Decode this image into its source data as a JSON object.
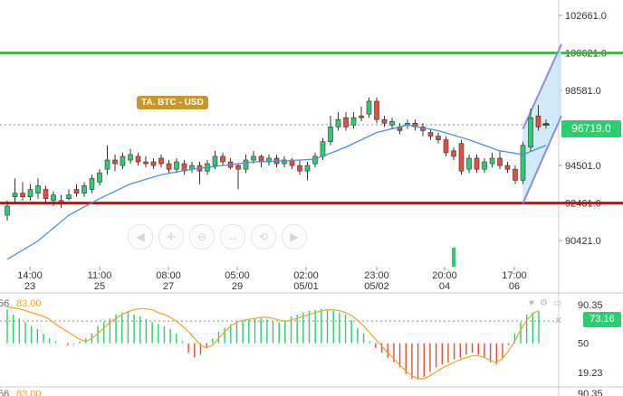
{
  "symbol_badge": "TA.  BTC - USD",
  "last_price_label": "96719.0",
  "colors": {
    "up": "#2ecc71",
    "down": "#e74c3c",
    "ma": "#4a90e2",
    "channel": "#8a8fd9",
    "support": "#e60000",
    "resistance": "#22cc22",
    "stoch": "#f0a830",
    "badge": "#c9972b"
  },
  "chart_data": {
    "type": "candlestick",
    "price_axis": {
      "ticks": [
        102661,
        100621,
        98581,
        96719,
        94501,
        92461,
        90421
      ],
      "tick_labels": [
        "102661.0",
        "100621.0",
        "98581.0",
        "",
        "94501.0",
        "92461.0",
        "90421.0"
      ],
      "range": [
        89000,
        103500
      ]
    },
    "time_labels": [
      [
        "14:00",
        "23"
      ],
      [
        "11:00",
        "25"
      ],
      [
        "08:00",
        "27"
      ],
      [
        "05:00",
        "29"
      ],
      [
        "02:00",
        "05/01"
      ],
      [
        "23:00",
        "05/02"
      ],
      [
        "20:00",
        "04"
      ],
      [
        "17:00",
        "06"
      ]
    ],
    "horizontal_lines": [
      {
        "role": "resistance",
        "value": 100621
      },
      {
        "role": "support",
        "value": 92461
      },
      {
        "role": "last-price",
        "value": 96719
      }
    ],
    "candles": [
      [
        91800,
        92300,
        91500,
        92600
      ],
      [
        92800,
        93000,
        92400,
        93800
      ],
      [
        93000,
        92800,
        92600,
        93600
      ],
      [
        92800,
        93200,
        92600,
        93500
      ],
      [
        93000,
        93400,
        92700,
        93800
      ],
      [
        93200,
        92700,
        92500,
        93400
      ],
      [
        92600,
        92900,
        92300,
        93100
      ],
      [
        92600,
        92500,
        92200,
        92900
      ],
      [
        92700,
        92900,
        92600,
        93200
      ],
      [
        93200,
        93000,
        92800,
        93500
      ],
      [
        93000,
        93400,
        92800,
        93600
      ],
      [
        93200,
        93800,
        93000,
        94000
      ],
      [
        93600,
        94100,
        93400,
        94300
      ],
      [
        94300,
        94800,
        94000,
        95600
      ],
      [
        94800,
        94600,
        94200,
        95100
      ],
      [
        94500,
        95000,
        94300,
        95200
      ],
      [
        94800,
        95100,
        94600,
        95400
      ],
      [
        95000,
        94700,
        94500,
        95200
      ],
      [
        94700,
        94600,
        94400,
        95000
      ],
      [
        94700,
        94500,
        94300,
        94900
      ],
      [
        94900,
        94600,
        94400,
        95100
      ],
      [
        94600,
        94300,
        94100,
        94800
      ],
      [
        94300,
        94700,
        94100,
        94900
      ],
      [
        94600,
        94200,
        94000,
        94800
      ],
      [
        94300,
        94500,
        94100,
        94700
      ],
      [
        94500,
        94200,
        93500,
        94700
      ],
      [
        94200,
        94600,
        94000,
        94800
      ],
      [
        94500,
        95000,
        94300,
        95300
      ],
      [
        95000,
        94700,
        94500,
        95200
      ],
      [
        94700,
        94400,
        94300,
        94900
      ],
      [
        94500,
        94300,
        93200,
        94600
      ],
      [
        94300,
        94800,
        94100,
        95100
      ],
      [
        94800,
        95000,
        94600,
        95300
      ],
      [
        95000,
        94700,
        94400,
        95100
      ],
      [
        94700,
        94900,
        94500,
        95100
      ],
      [
        94900,
        94600,
        94400,
        95100
      ],
      [
        94600,
        94800,
        94400,
        95000
      ],
      [
        94800,
        94500,
        94300,
        94900
      ],
      [
        94500,
        94200,
        94000,
        94800
      ],
      [
        94200,
        94500,
        93700,
        94700
      ],
      [
        94600,
        95000,
        94400,
        95200
      ],
      [
        95000,
        95800,
        94800,
        96000
      ],
      [
        95800,
        96600,
        95600,
        97200
      ],
      [
        96600,
        97000,
        96400,
        97400
      ],
      [
        97100,
        96600,
        96400,
        97400
      ],
      [
        96700,
        97100,
        96500,
        97400
      ],
      [
        97200,
        97100,
        96900,
        97700
      ],
      [
        97300,
        98000,
        97100,
        98200
      ],
      [
        98000,
        97000,
        96800,
        98200
      ],
      [
        97000,
        96800,
        96600,
        97200
      ],
      [
        96700,
        96900,
        96500,
        97100
      ],
      [
        96600,
        96400,
        96200,
        96800
      ],
      [
        96700,
        96800,
        96500,
        97000
      ],
      [
        96800,
        96600,
        96400,
        97000
      ],
      [
        96600,
        96400,
        96100,
        96800
      ],
      [
        96300,
        96100,
        95900,
        96500
      ],
      [
        96100,
        95900,
        95700,
        96300
      ],
      [
        95900,
        95200,
        95000,
        96100
      ],
      [
        95300,
        95000,
        94800,
        95500
      ],
      [
        95700,
        94200,
        94000,
        95900
      ],
      [
        94300,
        94900,
        94100,
        95100
      ],
      [
        94900,
        94300,
        94100,
        95100
      ],
      [
        94300,
        94700,
        94100,
        94900
      ],
      [
        94600,
        94900,
        94400,
        95200
      ],
      [
        94900,
        94500,
        94300,
        95300
      ],
      [
        94500,
        94300,
        94100,
        94700
      ],
      [
        94300,
        93700,
        93500,
        94500
      ],
      [
        93700,
        95600,
        93500,
        95800
      ],
      [
        95500,
        97100,
        95300,
        97600
      ],
      [
        97200,
        96600,
        96400,
        97800
      ],
      [
        96700,
        96800,
        96500,
        97000
      ]
    ],
    "moving_average": [
      [
        0,
        89400
      ],
      [
        4,
        90400
      ],
      [
        8,
        91800
      ],
      [
        12,
        92700
      ],
      [
        16,
        93500
      ],
      [
        20,
        94000
      ],
      [
        24,
        94300
      ],
      [
        28,
        94500
      ],
      [
        32,
        94700
      ],
      [
        36,
        94750
      ],
      [
        40,
        94850
      ],
      [
        44,
        95500
      ],
      [
        48,
        96300
      ],
      [
        52,
        96700
      ],
      [
        56,
        96400
      ],
      [
        60,
        95900
      ],
      [
        64,
        95300
      ],
      [
        67,
        95100
      ],
      [
        70,
        95600
      ]
    ],
    "channel": {
      "upper": [
        [
          67,
          96500
        ],
        [
          72,
          101100
        ]
      ],
      "lower": [
        [
          67,
          92450
        ],
        [
          72,
          97200
        ]
      ]
    },
    "stochastic": {
      "scale_ticks": [
        90.35,
        50,
        19.23
      ],
      "reference_line": 73.16,
      "current_label": "73.16",
      "left_labels": [
        "56",
        "83.00"
      ],
      "bars": [
        85,
        80,
        76,
        72,
        68,
        65,
        60,
        55,
        52,
        50,
        48,
        49,
        52,
        55,
        60,
        68,
        72,
        76,
        80,
        82,
        83,
        80,
        78,
        75,
        72,
        70,
        68,
        65,
        60,
        52,
        40,
        35,
        38,
        45,
        55,
        62,
        66,
        70,
        72,
        74,
        75,
        76,
        76,
        75,
        73,
        72,
        74,
        78,
        80,
        82,
        84,
        85,
        86,
        85,
        84,
        82,
        80,
        74,
        66,
        60,
        52,
        45,
        40,
        35,
        30,
        25,
        18,
        13,
        12,
        15,
        20,
        25,
        28,
        30,
        33,
        35,
        38,
        40,
        38,
        35,
        30,
        28,
        35,
        48,
        60,
        72,
        80,
        82,
        83
      ],
      "signal": [
        88,
        87,
        86,
        84,
        82,
        80,
        78,
        75,
        70,
        66,
        62,
        58,
        54,
        52,
        55,
        60,
        66,
        72,
        76,
        80,
        83,
        85,
        86,
        86,
        85,
        82,
        80,
        77,
        73,
        68,
        62,
        55,
        48,
        45,
        48,
        55,
        62,
        68,
        72,
        74,
        75,
        76,
        77,
        77,
        76,
        74,
        73,
        74,
        76,
        78,
        80,
        82,
        84,
        85,
        85,
        84,
        82,
        79,
        74,
        68,
        61,
        54,
        47,
        40,
        34,
        27,
        21,
        16,
        13,
        13,
        16,
        20,
        24,
        27,
        30,
        33,
        35,
        37,
        37,
        35,
        32,
        30,
        34,
        42,
        52,
        64,
        74,
        81,
        84
      ]
    }
  }
}
